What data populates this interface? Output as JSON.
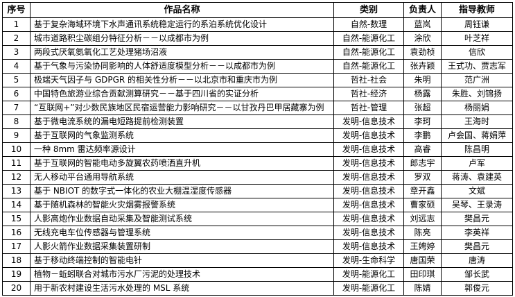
{
  "headers": [
    "序号",
    "作品名称",
    "类别",
    "负责人",
    "指导教师"
  ],
  "rows": [
    [
      "1",
      "基于复杂海域环境下水声通讯系统稳定运行的系泊系统优化设计",
      "自然-数理",
      "蓝岚",
      "周钰谦"
    ],
    [
      "2",
      "城市道路积尘碳组分特征分析－－以成都市为例",
      "自然-能源化工",
      "涂欣",
      "叶芝祥"
    ],
    [
      "3",
      "两段式厌氧氨氧化工艺处理猪场沼液",
      "自然-能源化工",
      "袁劲桢",
      "信欣"
    ],
    [
      "4",
      "基于气象与污染协同影响的人体舒适度模型分析－－以成都市为例",
      "自然-能源化工",
      "张卉颖",
      "王式功、贾志军"
    ],
    [
      "5",
      "极端天气因子与 GDPGR 的相关性分析－－以北京市和重庆市为例",
      "哲社-社会",
      "朱明",
      "范广洲"
    ],
    [
      "6",
      "中国特色旅游业综合贡献测算研究－－基于四川省的实证分析",
      "哲社-经济",
      "杨露",
      "朱胜、刘锦扬"
    ],
    [
      "7",
      "“互联网+”对少数民族地区民宿运营能力影响研究－－以甘孜丹巴甲居藏寨为例",
      "哲社-管理",
      "张超",
      "杨丽娟"
    ],
    [
      "8",
      "基于微电流系统的漏电短路提前检测装置",
      "发明-信息技术",
      "李珂",
      "王海时"
    ],
    [
      "9",
      "基于互联网的气象监测系统",
      "发明-信息技术",
      "李鹏",
      "卢会国、蒋娟萍"
    ],
    [
      "10",
      "一种 8mm 雷达频率源设计",
      "发明-信息技术",
      "高睿",
      "陈昌明"
    ],
    [
      "11",
      "基于互联网的智能电动多旋翼农药喷洒直升机",
      "发明-信息技术",
      "郎志宇",
      "卢军"
    ],
    [
      "12",
      "无人移动平台通用导航系统",
      "发明-信息技术",
      "罗双",
      "蒋涛、袁建英"
    ],
    [
      "13",
      "基于 NBIOT 的数字式一体化的农业大棚温湿度传感器",
      "发明-信息技术",
      "章开鑫",
      "文斌"
    ],
    [
      "14",
      "基于随机森林的智能火灾烟雾报警系统",
      "发明-信息技术",
      "曹家硕",
      "吴琴、王录涛"
    ],
    [
      "15",
      "人影高炮作业数据自动采集及智能测试系统",
      "发明-信息技术",
      "刘远志",
      "樊昌元"
    ],
    [
      "16",
      "无线充电车位传感器与管理系统",
      "发明-信息技术",
      "陈亮",
      "李英祥"
    ],
    [
      "17",
      "人影火箭作业数据采集装置研制",
      "发明-信息技术",
      "王娉婷",
      "樊昌元"
    ],
    [
      "18",
      "基于移动终端控制的智能电针",
      "发明-生命科学",
      "唐国荣",
      "唐涛"
    ],
    [
      "19",
      "植物－蚯蚓联合对城市污水厂污泥的处理技术",
      "发明-能源化工",
      "田印琪",
      "邹长武"
    ],
    [
      "20",
      "用于新农村建设生活污水处理的 MSL 系统",
      "发明-能源化工",
      "陈婧",
      "郭俊元"
    ]
  ]
}
